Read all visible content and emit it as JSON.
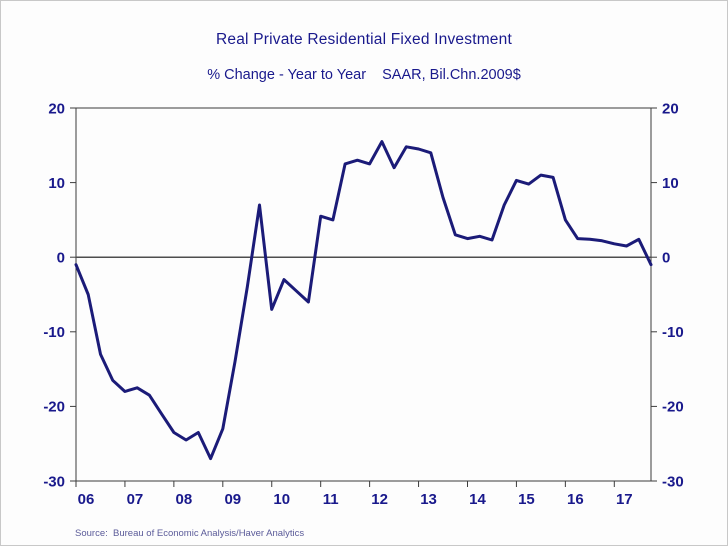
{
  "header": {
    "title": "Real Private Residential Fixed Investment",
    "subtitle": "% Change - Year to Year    SAAR, Bil.Chn.2009$"
  },
  "footer": {
    "source_note": "Source:  Bureau of Economic Analysis/Haver Analytics"
  },
  "colors": {
    "line": "#1b1b78",
    "axis_text": "#19198c",
    "axis_frame": "#3c3c3c",
    "zero_line": "#4d4d4d",
    "background": "#fdfdfd"
  },
  "chart_data": {
    "type": "line",
    "title": "Real Private Residential Fixed Investment",
    "subtitle": "% Change - Year to Year    SAAR, Bil.Chn.2009$",
    "frequency": "quarterly",
    "x_tick_labels": [
      "06",
      "07",
      "08",
      "09",
      "10",
      "11",
      "12",
      "13",
      "14",
      "15",
      "16",
      "17"
    ],
    "x_tick_quarter_indexes": [
      0,
      4,
      8,
      12,
      16,
      20,
      24,
      28,
      32,
      36,
      40,
      44
    ],
    "values": [
      -1,
      -5,
      -13,
      -16.5,
      -18,
      -17.5,
      -18.5,
      -21,
      -23.5,
      -24.5,
      -23.5,
      -27,
      -23,
      -14,
      -4,
      7,
      -7,
      -3,
      -4.5,
      -6,
      5.5,
      5,
      12.5,
      13,
      12.5,
      15.5,
      12,
      14.8,
      14.5,
      14,
      8,
      3,
      2.5,
      2.8,
      2.3,
      7,
      10.3,
      9.8,
      11,
      10.7,
      5,
      2.5,
      2.4,
      2.2,
      1.8,
      1.5,
      2.4,
      -1
    ],
    "ylim": [
      -30,
      20
    ],
    "yticks": [
      -30,
      -20,
      -10,
      0,
      10,
      20
    ],
    "dual_y_axis": true,
    "grid": false,
    "zero_line": true,
    "legend": "none",
    "line_color": "#1b1b78"
  }
}
